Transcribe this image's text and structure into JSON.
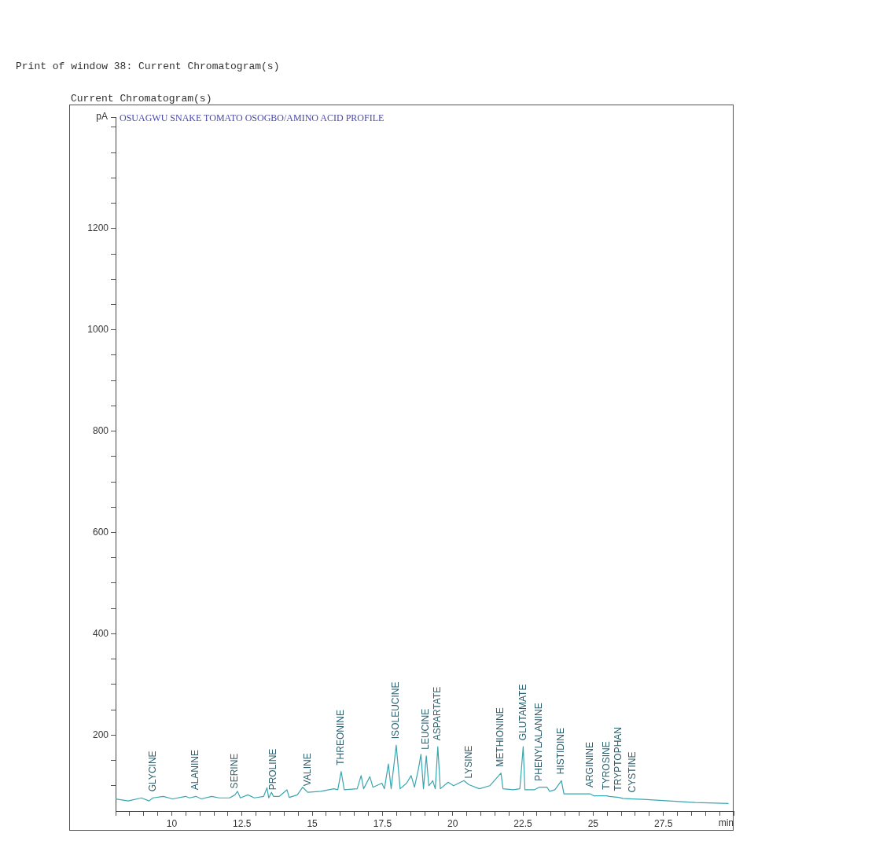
{
  "chart_data": {
    "type": "line",
    "title": "OSUAGWU SNAKE TOMATO OSOGBO/AMINO ACID PROFILE",
    "xlabel": "min",
    "ylabel": "pA",
    "annotations": [
      "Print of window 38: Current Chromatogram(s)",
      "Current Chromatogram(s)",
      {
        "text": "GLYCINE",
        "x": 9.33,
        "y": 76
      },
      {
        "text": "ALANINE",
        "x": 10.86,
        "y": 79
      },
      {
        "text": "SERINE",
        "x": 12.25,
        "y": 82
      },
      {
        "text": "PROLINE",
        "x": 13.62,
        "y": 79
      },
      {
        "text": "VALINE",
        "x": 14.84,
        "y": 87
      },
      {
        "text": "THREONINE",
        "x": 16.03,
        "y": 128
      },
      {
        "text": "ISOLEUCINE",
        "x": 17.99,
        "y": 180
      },
      {
        "text": "LEUCINE",
        "x": 19.06,
        "y": 159
      },
      {
        "text": "ASPARTATE",
        "x": 19.47,
        "y": 177
      },
      {
        "text": "LYSINE",
        "x": 20.58,
        "y": 102
      },
      {
        "text": "METHIONINE",
        "x": 21.72,
        "y": 125
      },
      {
        "text": "GLUTAMATE",
        "x": 22.51,
        "y": 177
      },
      {
        "text": "PHENYLALANINE",
        "x": 23.08,
        "y": 97
      },
      {
        "text": "HISTIDINE",
        "x": 23.87,
        "y": 110
      },
      {
        "text": "ARGININE",
        "x": 24.89,
        "y": 84
      },
      {
        "text": "TYROSINE",
        "x": 25.49,
        "y": 80
      },
      {
        "text": "TRYPTOPHAN",
        "x": 25.91,
        "y": 77
      },
      {
        "text": "CYSTINE",
        "x": 26.42,
        "y": 74
      }
    ],
    "series": [
      {
        "color": "#3aa6b0",
        "x": [
          8.0,
          8.45,
          8.92,
          9.19,
          9.33,
          9.7,
          10.03,
          10.49,
          10.63,
          10.86,
          11.05,
          11.42,
          11.69,
          12.06,
          12.25,
          12.34,
          12.44,
          12.71,
          12.94,
          13.27,
          13.39,
          13.45,
          13.55,
          13.62,
          13.83,
          14.1,
          14.18,
          14.47,
          14.66,
          14.84,
          15.31,
          15.77,
          15.91,
          16.03,
          16.14,
          16.6,
          16.74,
          16.83,
          17.05,
          17.16,
          17.48,
          17.57,
          17.71,
          17.81,
          17.99,
          18.13,
          18.36,
          18.52,
          18.64,
          18.78,
          18.87,
          18.96,
          19.06,
          19.15,
          19.29,
          19.38,
          19.47,
          19.56,
          19.84,
          20.03,
          20.4,
          20.58,
          20.95,
          21.32,
          21.72,
          21.79,
          22.16,
          22.39,
          22.51,
          22.57,
          22.9,
          23.08,
          23.36,
          23.45,
          23.64,
          23.87,
          23.96,
          24.47,
          24.89,
          25.03,
          25.49,
          25.58,
          25.91,
          26.05,
          26.42,
          26.79,
          27.71,
          28.64,
          29.82
        ],
        "values": [
          74,
          70,
          76,
          70,
          76,
          79,
          74,
          79,
          76,
          79,
          74,
          79,
          76,
          76,
          82,
          89,
          76,
          82,
          76,
          79,
          96,
          76,
          87,
          79,
          79,
          92,
          77,
          82,
          97,
          87,
          89,
          94,
          92,
          128,
          92,
          94,
          120,
          94,
          118,
          97,
          105,
          94,
          143,
          94,
          180,
          94,
          105,
          120,
          97,
          133,
          162,
          94,
          159,
          100,
          110,
          94,
          177,
          94,
          107,
          100,
          110,
          102,
          94,
          100,
          125,
          94,
          92,
          94,
          177,
          92,
          92,
          97,
          97,
          89,
          92,
          110,
          84,
          84,
          84,
          80,
          80,
          79,
          77,
          75,
          74,
          73,
          70,
          67,
          65
        ]
      }
    ],
    "xlim": [
      8,
      30
    ],
    "xticks": [
      {
        "value": 8,
        "label": null
      },
      {
        "value": 8.5,
        "label": null
      },
      {
        "value": 9,
        "label": null
      },
      {
        "value": 9.5,
        "label": null
      },
      10,
      {
        "value": 10.5,
        "label": null
      },
      {
        "value": 11,
        "label": null
      },
      {
        "value": 11.5,
        "label": null
      },
      {
        "value": 12,
        "label": null
      },
      12.5,
      {
        "value": 13,
        "label": null
      },
      {
        "value": 13.5,
        "label": null
      },
      {
        "value": 14,
        "label": null
      },
      {
        "value": 14.5,
        "label": null
      },
      15,
      {
        "value": 15.5,
        "label": null
      },
      {
        "value": 16,
        "label": null
      },
      {
        "value": 16.5,
        "label": null
      },
      {
        "value": 17,
        "label": null
      },
      17.5,
      {
        "value": 18,
        "label": null
      },
      {
        "value": 18.5,
        "label": null
      },
      {
        "value": 19,
        "label": null
      },
      {
        "value": 19.5,
        "label": null
      },
      20,
      {
        "value": 20.5,
        "label": null
      },
      {
        "value": 21,
        "label": null
      },
      {
        "value": 21.5,
        "label": null
      },
      {
        "value": 22,
        "label": null
      },
      22.5,
      {
        "value": 23,
        "label": null
      },
      {
        "value": 23.5,
        "label": null
      },
      {
        "value": 24,
        "label": null
      },
      {
        "value": 24.5,
        "label": null
      },
      25,
      {
        "value": 25.5,
        "label": null
      },
      {
        "value": 26,
        "label": null
      },
      {
        "value": 26.5,
        "label": null
      },
      {
        "value": 27,
        "label": null
      },
      27.5,
      {
        "value": 28,
        "label": null
      },
      {
        "value": 28.5,
        "label": null
      },
      {
        "value": 29,
        "label": null
      },
      {
        "value": 29.5,
        "label": null
      },
      {
        "value": 30,
        "label": null
      }
    ],
    "ylim": [
      50,
      1420
    ],
    "yticks": [
      {
        "value": 100,
        "label": null
      },
      {
        "value": 150,
        "label": null
      },
      200,
      {
        "value": 250,
        "label": null
      },
      {
        "value": 300,
        "label": null
      },
      {
        "value": 350,
        "label": null
      },
      400,
      {
        "value": 450,
        "label": null
      },
      {
        "value": 500,
        "label": null
      },
      {
        "value": 550,
        "label": null
      },
      600,
      {
        "value": 650,
        "label": null
      },
      {
        "value": 700,
        "label": null
      },
      {
        "value": 750,
        "label": null
      },
      800,
      {
        "value": 850,
        "label": null
      },
      {
        "value": 900,
        "label": null
      },
      {
        "value": 950,
        "label": null
      },
      1000,
      {
        "value": 1050,
        "label": null
      },
      {
        "value": 1100,
        "label": null
      },
      {
        "value": 1150,
        "label": null
      },
      1200,
      {
        "value": 1250,
        "label": null
      },
      {
        "value": 1300,
        "label": null
      },
      {
        "value": 1350,
        "label": null
      },
      {
        "value": 1400,
        "label": null
      },
      {
        "value": 1420,
        "label": null
      }
    ],
    "grid": false,
    "legend": false
  }
}
